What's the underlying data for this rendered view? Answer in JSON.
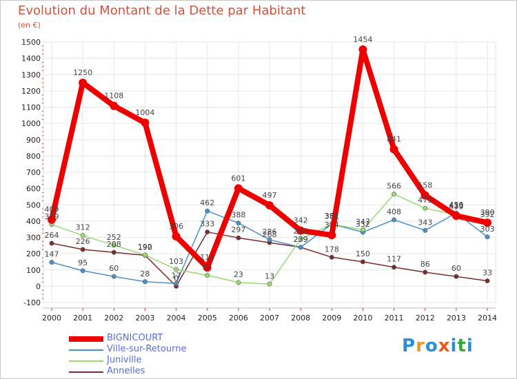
{
  "title": "Evolution du Montant de la Dette par Habitant",
  "unit_label": "(en €)",
  "brand": {
    "letters": [
      "P",
      "r",
      "o",
      "x",
      "i",
      "t",
      "i"
    ],
    "colors": [
      "#2a8fd6",
      "#e89b1c",
      "#2a8fd6",
      "#e85a1c",
      "#2a8fd6",
      "#3da53d",
      "#2a8fd6"
    ]
  },
  "chart_data": {
    "type": "line",
    "title": "Evolution du Montant de la Dette par Habitant",
    "ylabel": "(en €)",
    "xlabel": "",
    "x": [
      "2000",
      "2001",
      "2002",
      "2003",
      "2004",
      "2005",
      "2006",
      "2007",
      "2008",
      "2009",
      "2010",
      "2011",
      "2012",
      "2013",
      "2014"
    ],
    "ylim": [
      -100,
      1500
    ],
    "yticks": [
      -100,
      0,
      100,
      200,
      300,
      400,
      500,
      600,
      700,
      800,
      900,
      1000,
      1100,
      1200,
      1300,
      1400,
      1500
    ],
    "grid": true,
    "legend_position": "bottom-left",
    "series": [
      {
        "name": "Annelles",
        "color": "#7a2a2a",
        "width": 1.5,
        "values": [
          264,
          226,
          208,
          190,
          0,
          333,
          297,
          268,
          239,
          178,
          150,
          117,
          86,
          60,
          33
        ],
        "labels": [
          "264",
          "226",
          "208",
          "190",
          "0",
          "333",
          "297",
          "268",
          "239",
          "178",
          "150",
          "117",
          "86",
          "60",
          "33"
        ]
      },
      {
        "name": "Ville-sur-Retourne",
        "color": "#4a90c8",
        "width": 1.5,
        "values": [
          147,
          95,
          60,
          28,
          17,
          462,
          388,
          286,
          239,
          382,
          332,
          408,
          343,
          450,
          303
        ],
        "labels": [
          "147",
          "95",
          "60",
          "28",
          "17",
          "462",
          "388",
          "286",
          "239",
          "382",
          "332",
          "408",
          "343",
          "450",
          "303"
        ]
      },
      {
        "name": "Juniville",
        "color": "#9ad870",
        "width": 1.5,
        "values": [
          379,
          312,
          252,
          192,
          103,
          67,
          23,
          13,
          290,
          381,
          347,
          566,
          479,
          439,
          392
        ],
        "labels": [
          "379",
          "312",
          "252",
          "192",
          "103",
          "67",
          "23",
          "13",
          "290",
          "381",
          "347",
          "566",
          "479",
          "439",
          "392"
        ]
      },
      {
        "name": "BIGNICOURT",
        "color": "#ee0000",
        "width": 8,
        "values": [
          409,
          1250,
          1108,
          1004,
          306,
          115,
          601,
          497,
          342,
          314,
          1454,
          841,
          558,
          433,
          390
        ],
        "labels": [
          "409",
          "1250",
          "1108",
          "1004",
          "306",
          "115",
          "601",
          "497",
          "342",
          "314",
          "1454",
          "841",
          "558",
          "433",
          "390"
        ]
      }
    ],
    "legend_order": [
      "BIGNICOURT",
      "Ville-sur-Retourne",
      "Juniville",
      "Annelles"
    ]
  }
}
